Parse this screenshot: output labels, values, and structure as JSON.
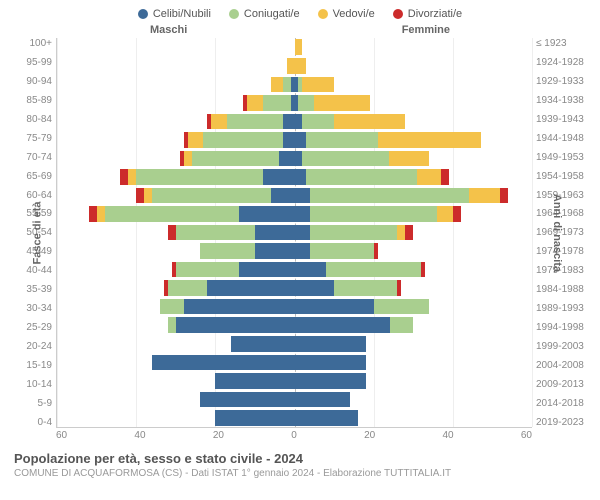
{
  "legend": {
    "items": [
      {
        "label": "Celibi/Nubili",
        "color": "#3d6a98"
      },
      {
        "label": "Coniugati/e",
        "color": "#a9cf8f"
      },
      {
        "label": "Vedovi/e",
        "color": "#f4c24a"
      },
      {
        "label": "Divorziati/e",
        "color": "#cc2b2b"
      }
    ]
  },
  "gender": {
    "male": "Maschi",
    "female": "Femmine"
  },
  "axes": {
    "y_left_title": "Fasce di età",
    "y_right_title": "Anni di nascita",
    "x_max": 60,
    "x_tick_step": 20,
    "x_ticks_male": [
      "60",
      "40",
      "20",
      "0"
    ],
    "x_ticks_female": [
      "20",
      "40",
      "60"
    ],
    "grid_color": "#eeeeee",
    "center_line_color": "#bbbbbb"
  },
  "colors": {
    "celibi": "#3d6a98",
    "coniugati": "#a9cf8f",
    "vedovi": "#f4c24a",
    "divorziati": "#cc2b2b",
    "background": "#ffffff",
    "text": "#666666",
    "muted": "#999999"
  },
  "type": "population-pyramid",
  "rows": [
    {
      "age": "100+",
      "birth": "≤ 1923",
      "m": {
        "cel": 0,
        "con": 0,
        "ved": 0,
        "div": 0
      },
      "f": {
        "cel": 0,
        "con": 0,
        "ved": 2,
        "div": 0
      }
    },
    {
      "age": "95-99",
      "birth": "1924-1928",
      "m": {
        "cel": 0,
        "con": 0,
        "ved": 2,
        "div": 0
      },
      "f": {
        "cel": 0,
        "con": 0,
        "ved": 3,
        "div": 0
      }
    },
    {
      "age": "90-94",
      "birth": "1929-1933",
      "m": {
        "cel": 1,
        "con": 2,
        "ved": 3,
        "div": 0
      },
      "f": {
        "cel": 1,
        "con": 1,
        "ved": 8,
        "div": 0
      }
    },
    {
      "age": "85-89",
      "birth": "1934-1938",
      "m": {
        "cel": 1,
        "con": 7,
        "ved": 4,
        "div": 1
      },
      "f": {
        "cel": 1,
        "con": 4,
        "ved": 14,
        "div": 0
      }
    },
    {
      "age": "80-84",
      "birth": "1939-1943",
      "m": {
        "cel": 3,
        "con": 14,
        "ved": 4,
        "div": 1
      },
      "f": {
        "cel": 2,
        "con": 8,
        "ved": 18,
        "div": 0
      }
    },
    {
      "age": "75-79",
      "birth": "1944-1948",
      "m": {
        "cel": 3,
        "con": 20,
        "ved": 4,
        "div": 1
      },
      "f": {
        "cel": 3,
        "con": 18,
        "ved": 26,
        "div": 0
      }
    },
    {
      "age": "70-74",
      "birth": "1949-1953",
      "m": {
        "cel": 4,
        "con": 22,
        "ved": 2,
        "div": 1
      },
      "f": {
        "cel": 2,
        "con": 22,
        "ved": 10,
        "div": 0
      }
    },
    {
      "age": "65-69",
      "birth": "1954-1958",
      "m": {
        "cel": 8,
        "con": 32,
        "ved": 2,
        "div": 2
      },
      "f": {
        "cel": 3,
        "con": 28,
        "ved": 6,
        "div": 2
      }
    },
    {
      "age": "60-64",
      "birth": "1959-1963",
      "m": {
        "cel": 6,
        "con": 30,
        "ved": 2,
        "div": 2
      },
      "f": {
        "cel": 4,
        "con": 40,
        "ved": 8,
        "div": 2
      }
    },
    {
      "age": "55-59",
      "birth": "1964-1968",
      "m": {
        "cel": 14,
        "con": 34,
        "ved": 2,
        "div": 2
      },
      "f": {
        "cel": 4,
        "con": 32,
        "ved": 4,
        "div": 2
      }
    },
    {
      "age": "50-54",
      "birth": "1969-1973",
      "m": {
        "cel": 10,
        "con": 20,
        "ved": 0,
        "div": 2
      },
      "f": {
        "cel": 4,
        "con": 22,
        "ved": 2,
        "div": 2
      }
    },
    {
      "age": "45-49",
      "birth": "1974-1978",
      "m": {
        "cel": 10,
        "con": 14,
        "ved": 0,
        "div": 0
      },
      "f": {
        "cel": 4,
        "con": 16,
        "ved": 0,
        "div": 1
      }
    },
    {
      "age": "40-44",
      "birth": "1979-1983",
      "m": {
        "cel": 14,
        "con": 16,
        "ved": 0,
        "div": 1
      },
      "f": {
        "cel": 8,
        "con": 24,
        "ved": 0,
        "div": 1
      }
    },
    {
      "age": "35-39",
      "birth": "1984-1988",
      "m": {
        "cel": 22,
        "con": 10,
        "ved": 0,
        "div": 1
      },
      "f": {
        "cel": 10,
        "con": 16,
        "ved": 0,
        "div": 1
      }
    },
    {
      "age": "30-34",
      "birth": "1989-1993",
      "m": {
        "cel": 28,
        "con": 6,
        "ved": 0,
        "div": 0
      },
      "f": {
        "cel": 20,
        "con": 14,
        "ved": 0,
        "div": 0
      }
    },
    {
      "age": "25-29",
      "birth": "1994-1998",
      "m": {
        "cel": 30,
        "con": 2,
        "ved": 0,
        "div": 0
      },
      "f": {
        "cel": 24,
        "con": 6,
        "ved": 0,
        "div": 0
      }
    },
    {
      "age": "20-24",
      "birth": "1999-2003",
      "m": {
        "cel": 16,
        "con": 0,
        "ved": 0,
        "div": 0
      },
      "f": {
        "cel": 18,
        "con": 0,
        "ved": 0,
        "div": 0
      }
    },
    {
      "age": "15-19",
      "birth": "2004-2008",
      "m": {
        "cel": 36,
        "con": 0,
        "ved": 0,
        "div": 0
      },
      "f": {
        "cel": 18,
        "con": 0,
        "ved": 0,
        "div": 0
      }
    },
    {
      "age": "10-14",
      "birth": "2009-2013",
      "m": {
        "cel": 20,
        "con": 0,
        "ved": 0,
        "div": 0
      },
      "f": {
        "cel": 18,
        "con": 0,
        "ved": 0,
        "div": 0
      }
    },
    {
      "age": "5-9",
      "birth": "2014-2018",
      "m": {
        "cel": 24,
        "con": 0,
        "ved": 0,
        "div": 0
      },
      "f": {
        "cel": 14,
        "con": 0,
        "ved": 0,
        "div": 0
      }
    },
    {
      "age": "0-4",
      "birth": "2019-2023",
      "m": {
        "cel": 20,
        "con": 0,
        "ved": 0,
        "div": 0
      },
      "f": {
        "cel": 16,
        "con": 0,
        "ved": 0,
        "div": 0
      }
    }
  ],
  "footer": {
    "title": "Popolazione per età, sesso e stato civile - 2024",
    "sub": "COMUNE DI ACQUAFORMOSA (CS) - Dati ISTAT 1° gennaio 2024 - Elaborazione TUTTITALIA.IT"
  }
}
